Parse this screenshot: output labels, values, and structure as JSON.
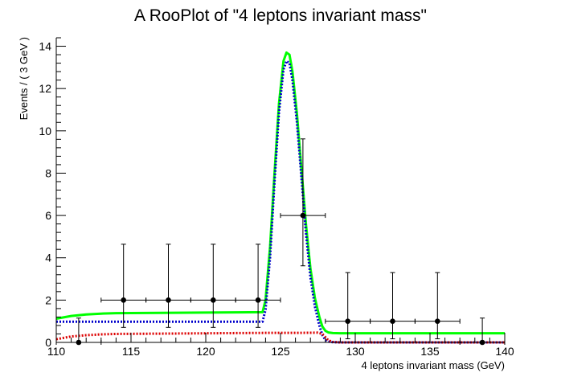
{
  "chart_data": {
    "type": "line",
    "title": "A RooPlot of \"4 leptons invariant mass\"",
    "xlabel": "4 leptons invariant mass (GeV)",
    "ylabel": "Events / ( 3 GeV )",
    "xlim": [
      110,
      140
    ],
    "ylim": [
      0,
      14.4
    ],
    "x_major_ticks": [
      110,
      115,
      120,
      125,
      130,
      135,
      140
    ],
    "x_tick_labels": [
      "110",
      "115",
      "120",
      "125",
      "130",
      "135",
      "140"
    ],
    "y_major_ticks": [
      0,
      2,
      4,
      6,
      8,
      10,
      12,
      14
    ],
    "y_tick_labels": [
      "0",
      "2",
      "4",
      "6",
      "8",
      "10",
      "12",
      "14"
    ],
    "grid": false,
    "legend": "none",
    "data_points": {
      "x": [
        111.5,
        114.5,
        117.5,
        120.5,
        123.5,
        126.5,
        129.5,
        132.5,
        135.5,
        138.5
      ],
      "y": [
        0,
        2,
        2,
        2,
        2,
        6,
        1,
        1,
        1,
        0
      ],
      "x_err": 1.5,
      "y_err_low": [
        0,
        1.29,
        1.29,
        1.29,
        1.29,
        2.38,
        0.83,
        0.83,
        0.83,
        0
      ],
      "y_err_high": [
        1.15,
        2.64,
        2.64,
        2.64,
        2.64,
        3.62,
        2.3,
        2.3,
        2.3,
        1.15
      ],
      "color": "#000000"
    },
    "series": [
      {
        "style": "solid",
        "color": "#00ff00",
        "x": [
          110,
          111,
          112,
          113,
          114,
          116,
          118,
          120,
          122,
          123.8,
          124.0,
          124.3,
          124.6,
          124.9,
          125.2,
          125.4,
          125.6,
          125.8,
          126.1,
          126.4,
          126.7,
          127.0,
          127.3,
          127.6,
          127.8,
          128.0,
          128.2,
          128.5,
          129,
          130,
          135,
          140
        ],
        "y": [
          1.12,
          1.25,
          1.32,
          1.36,
          1.38,
          1.39,
          1.4,
          1.41,
          1.42,
          1.43,
          2.0,
          4.5,
          8.0,
          11.3,
          13.3,
          13.7,
          13.6,
          12.8,
          10.8,
          8.2,
          5.6,
          3.5,
          2.1,
          1.2,
          0.75,
          0.55,
          0.47,
          0.44,
          0.43,
          0.43,
          0.43,
          0.43
        ]
      },
      {
        "style": "dotted",
        "color": "#0000cc",
        "x": [
          110,
          111,
          112,
          113,
          114,
          116,
          118,
          120,
          122,
          123.8,
          124.0,
          124.3,
          124.6,
          124.9,
          125.2,
          125.4,
          125.6,
          125.8,
          126.1,
          126.4,
          126.7,
          127.0,
          127.3,
          127.6,
          127.8,
          128.0,
          128.2,
          128.5,
          129,
          130,
          135,
          140
        ],
        "y": [
          0.98,
          0.98,
          0.98,
          0.98,
          0.98,
          0.98,
          0.98,
          0.98,
          0.98,
          0.98,
          1.55,
          4.0,
          7.6,
          10.9,
          12.9,
          13.3,
          13.2,
          12.4,
          10.4,
          7.8,
          5.2,
          3.1,
          1.7,
          0.8,
          0.35,
          0.12,
          0.04,
          0.01,
          0,
          0,
          0,
          0
        ]
      },
      {
        "style": "dotted",
        "color": "#dd0000",
        "x": [
          110,
          111,
          112,
          113,
          114,
          116,
          118,
          120,
          122,
          124,
          126,
          127.5,
          127.8,
          128.0,
          128.2,
          128.5,
          129,
          130,
          135,
          140
        ],
        "y": [
          0.15,
          0.28,
          0.34,
          0.38,
          0.4,
          0.41,
          0.42,
          0.43,
          0.44,
          0.45,
          0.45,
          0.46,
          0.4,
          0.25,
          0.1,
          0.02,
          0,
          0,
          0,
          0
        ]
      }
    ]
  }
}
